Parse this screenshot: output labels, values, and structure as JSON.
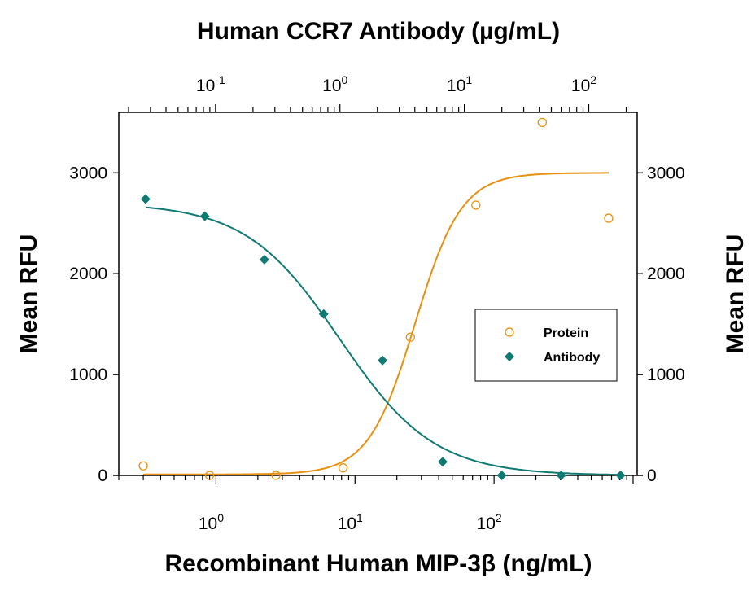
{
  "chart_data": {
    "type": "scatter",
    "title": "Human CCR7 Antibody (µg/mL)",
    "xlabel": "Recombinant Human MIP-3β (ng/mL)",
    "ylabel": "Mean RFU",
    "ylabel_right": "Mean RFU",
    "x_scale": "log",
    "xlim": [
      0.2,
      1070
    ],
    "x2label": "Human CCR7 Antibody (µg/mL)",
    "x2lim": [
      0.0167,
      245
    ],
    "ylim": [
      0,
      3600
    ],
    "yticks": [
      0,
      1000,
      2000,
      3000
    ],
    "xticks": [
      {
        "exp": "0"
      },
      {
        "exp": "1"
      },
      {
        "exp": "2"
      }
    ],
    "x2ticks": [
      {
        "exp": "-1"
      },
      {
        "exp": "0"
      },
      {
        "exp": "1"
      },
      {
        "exp": "2"
      }
    ],
    "grid": false,
    "legend_position": "center-right",
    "series": [
      {
        "name": "Protein",
        "axis": "bottom",
        "marker": "open-circle",
        "color": "#E8900F",
        "x": [
          0.3,
          0.9,
          2.7,
          8.2,
          25,
          74,
          222,
          667
        ],
        "y": [
          95,
          0,
          0,
          75,
          1370,
          2680,
          3500,
          2550
        ],
        "fit": {
          "bottom": 10,
          "top": 3000,
          "ec50": 27,
          "hill": 2.6
        }
      },
      {
        "name": "Antibody",
        "axis": "top",
        "marker": "filled-diamond",
        "color": "#0E7A72",
        "x": [
          0.0274,
          0.082,
          0.247,
          0.74,
          2.2,
          6.7,
          20,
          60,
          180
        ],
        "y": [
          2740,
          2570,
          2140,
          1600,
          1140,
          135,
          0,
          0,
          0
        ],
        "fit": {
          "bottom": 0,
          "top": 2700,
          "ec50": 1.0,
          "hill": 1.15
        }
      }
    ]
  }
}
